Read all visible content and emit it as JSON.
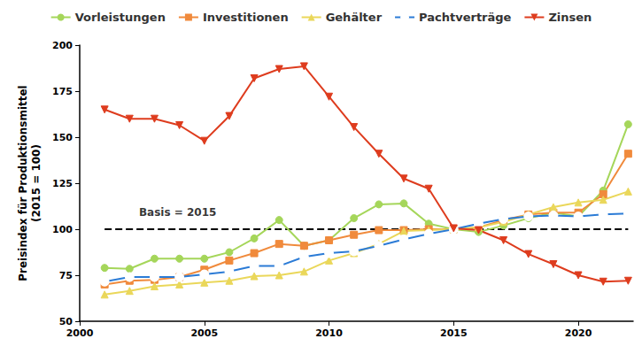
{
  "chart_data": {
    "type": "line",
    "y_label": "Preisindex für Produktionsmittel\n(2015 = 100)",
    "x": [
      2001,
      2002,
      2003,
      2004,
      2005,
      2006,
      2007,
      2008,
      2009,
      2010,
      2011,
      2012,
      2013,
      2014,
      2015,
      2016,
      2017,
      2018,
      2019,
      2020,
      2021,
      2022
    ],
    "series": [
      {
        "name": "Vorleistungen",
        "color": "#a5d65a",
        "marker": "circle",
        "values": [
          79,
          78.5,
          84,
          84,
          84,
          87.5,
          95,
          105,
          91,
          94,
          106,
          113.5,
          114,
          103,
          100,
          98.5,
          102,
          106,
          109,
          107,
          121,
          157
        ]
      },
      {
        "name": "Investitionen",
        "color": "#f08a3c",
        "marker": "square",
        "values": [
          70,
          72,
          72.5,
          74,
          78,
          83,
          87,
          92,
          91,
          94,
          97,
          99.5,
          99.5,
          100,
          100,
          101,
          105,
          108,
          109,
          109,
          119,
          141
        ]
      },
      {
        "name": "Gehälter",
        "color": "#ead75a",
        "marker": "triangle",
        "values": [
          64.5,
          66.5,
          69,
          70,
          71,
          72,
          74.5,
          75,
          77,
          83,
          87,
          92,
          99,
          99.5,
          100,
          101,
          104,
          108,
          112,
          114.5,
          116,
          120.5
        ]
      },
      {
        "name": "Pachtverträge",
        "color": "#2b7bd6",
        "marker": "circle_open",
        "values": [
          71.5,
          74,
          74,
          74,
          75.5,
          77,
          80,
          80,
          85,
          87,
          88,
          91,
          94.5,
          97.5,
          100,
          103,
          105.5,
          107,
          107.5,
          107,
          108,
          108.5
        ]
      },
      {
        "name": "Zinsen",
        "color": "#de3c1e",
        "marker": "triangle_down",
        "values": [
          165,
          160,
          160,
          156.5,
          148,
          161.5,
          182,
          187,
          188.5,
          172,
          155.5,
          141,
          127.5,
          122,
          100.5,
          99.5,
          94,
          86.5,
          81,
          75,
          71.5,
          72
        ]
      }
    ],
    "reference": {
      "value": 100,
      "label": "Basis = 2015",
      "label_x": 2002.2,
      "label_y": 109,
      "color": "#000000",
      "line_style": "dashed"
    },
    "xlim": [
      2000,
      2022.2
    ],
    "xticks": [
      2000,
      2005,
      2010,
      2015,
      2020
    ],
    "ylim": [
      50,
      200
    ],
    "yticks": [
      50,
      75,
      100,
      125,
      150,
      175,
      200
    ],
    "grid": false,
    "legend": "top"
  }
}
